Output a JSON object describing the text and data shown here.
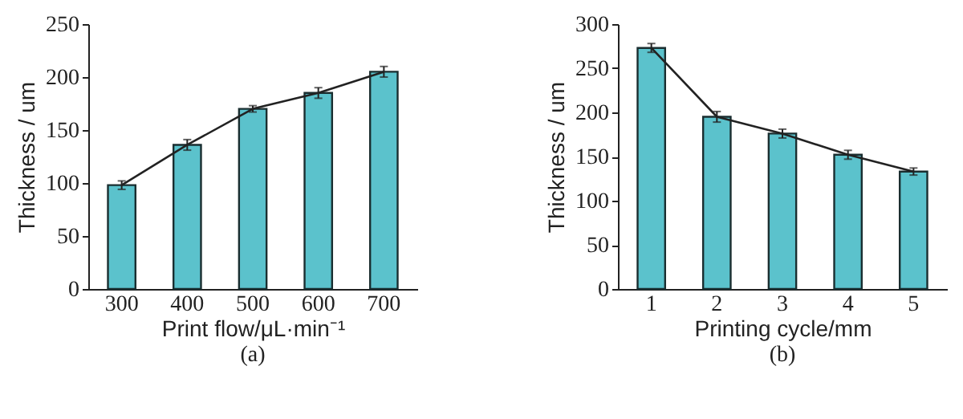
{
  "chart_data": [
    {
      "type": "bar",
      "categories": [
        "300",
        "400",
        "500",
        "600",
        "700"
      ],
      "xlabel": "Print flow/μL·min⁻¹",
      "ylabel": "Thickness / um",
      "ylim": [
        0,
        250
      ],
      "yticks": [
        0,
        50,
        100,
        150,
        200,
        250
      ],
      "grid": false,
      "annotations": [
        "(a)"
      ],
      "series": [
        {
          "color": "#5bc2cc",
          "values": [
            98,
            136,
            170,
            185,
            205
          ],
          "errors": [
            4,
            5,
            3,
            5,
            5
          ]
        },
        {
          "type": "line",
          "color": "#222222",
          "values": [
            98,
            136,
            170,
            185,
            205
          ]
        }
      ]
    },
    {
      "type": "bar",
      "categories": [
        "1",
        "2",
        "3",
        "4",
        "5"
      ],
      "xlabel": "Printing cycle/mm",
      "ylabel": "Thickness / um",
      "ylim": [
        0,
        300
      ],
      "yticks": [
        0,
        50,
        100,
        150,
        200,
        250,
        300
      ],
      "grid": false,
      "annotations": [
        "(b)"
      ],
      "series": [
        {
          "color": "#5bc2cc",
          "values": [
            273,
            195,
            176,
            152,
            133
          ],
          "errors": [
            5,
            6,
            5,
            5,
            4
          ]
        },
        {
          "type": "line",
          "color": "#222222",
          "values": [
            273,
            195,
            176,
            152,
            133
          ]
        }
      ]
    }
  ]
}
